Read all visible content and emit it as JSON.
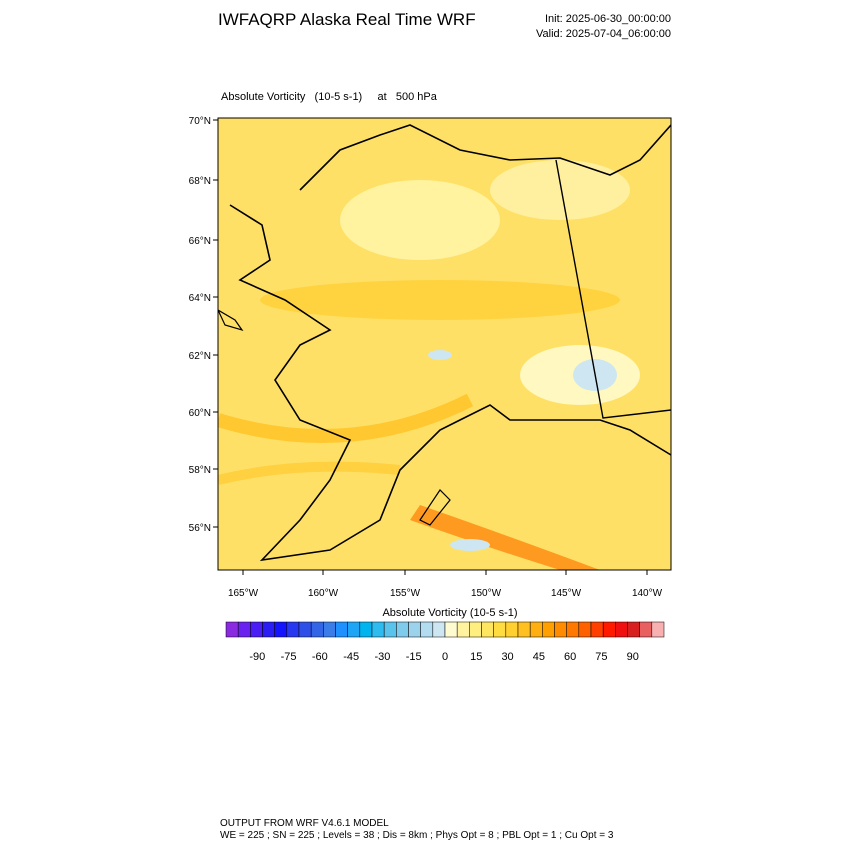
{
  "header": {
    "title": "IWFAQRP Alaska Real Time WRF",
    "init": "Init: 2025-06-30_00:00:00",
    "valid": "Valid: 2025-07-04_06:00:00"
  },
  "map": {
    "subtitle": "Absolute Vorticity   (10-5 s-1)     at   500 hPa",
    "lat_labels": [
      "70°N",
      "68°N",
      "66°N",
      "64°N",
      "62°N",
      "60°N",
      "58°N",
      "56°N"
    ],
    "lon_labels": [
      "165°W",
      "160°W",
      "155°W",
      "150°W",
      "145°W",
      "140°W"
    ]
  },
  "colorbar": {
    "label": "Absolute Vorticity  (10-5 s-1)",
    "range": [
      -105,
      105
    ],
    "ticks": [
      -90,
      -75,
      -60,
      -45,
      -30,
      -15,
      0,
      15,
      30,
      45,
      60,
      75,
      90
    ],
    "colors": [
      "#8a2be2",
      "#6a22f0",
      "#4a1ef5",
      "#2a1ef5",
      "#1414ff",
      "#2838f0",
      "#2f50e8",
      "#3366e6",
      "#3b7de8",
      "#1e90ff",
      "#1fa5f5",
      "#00b4f0",
      "#2dbbf0",
      "#5ac3ec",
      "#7ecbec",
      "#9dd2ec",
      "#b3dcf0",
      "#cde6f2",
      "#fffbd0",
      "#fff3a0",
      "#ffee80",
      "#ffe660",
      "#ffdd40",
      "#ffd030",
      "#ffc020",
      "#ffb010",
      "#ffa000",
      "#ff8c00",
      "#ff7800",
      "#ff6000",
      "#ff4000",
      "#ff1a00",
      "#f01010",
      "#d82020",
      "#e86060",
      "#f8b0b0"
    ]
  },
  "footer": {
    "line1": "OUTPUT FROM WRF V4.6.1 MODEL",
    "line2": "WE = 225 ; SN = 225 ; Levels = 38 ; Dis = 8km ; Phys Opt = 8 ; PBL Opt = 1 ; Cu Opt = 3"
  }
}
